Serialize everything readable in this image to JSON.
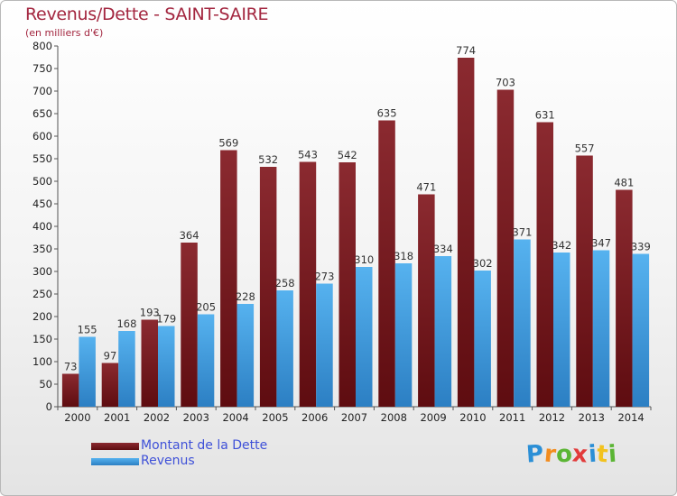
{
  "header": {
    "title": "Revenus/Dette - SAINT-SAIRE",
    "subtitle": "(en milliers d'€)"
  },
  "chart_data": {
    "type": "bar",
    "categories": [
      "2000",
      "2001",
      "2002",
      "2003",
      "2004",
      "2005",
      "2006",
      "2007",
      "2008",
      "2009",
      "2010",
      "2011",
      "2012",
      "2013",
      "2014"
    ],
    "series": [
      {
        "name": "Montant de la Dette",
        "values": [
          73,
          97,
          193,
          364,
          569,
          532,
          543,
          542,
          635,
          471,
          774,
          703,
          631,
          557,
          481
        ],
        "color": "#7a1a1e"
      },
      {
        "name": "Revenus",
        "values": [
          155,
          168,
          179,
          205,
          228,
          258,
          273,
          310,
          318,
          334,
          302,
          371,
          342,
          347,
          339
        ],
        "color": "#3d9ee0"
      }
    ],
    "ylim": [
      0,
      800
    ],
    "yticks": [
      0,
      50,
      100,
      150,
      200,
      250,
      300,
      350,
      400,
      450,
      500,
      550,
      600,
      650,
      700,
      750,
      800
    ],
    "grid": false,
    "legend": "bottom-left",
    "data_labels": true
  },
  "logo": {
    "letters": [
      "P",
      "r",
      "o",
      "x",
      "i",
      "t",
      "i"
    ],
    "colors": [
      "#2b8fd6",
      "#f28c1e",
      "#5bb534",
      "#e23b3b",
      "#2b8fd6",
      "#f2c21e",
      "#5bb534"
    ]
  }
}
